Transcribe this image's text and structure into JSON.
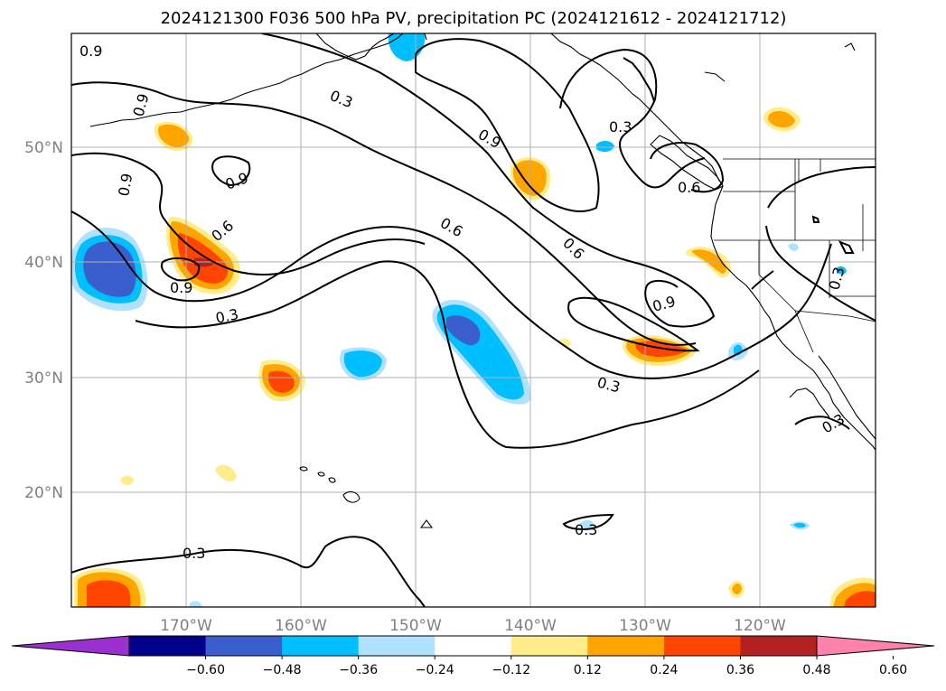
{
  "title": "2024121300 F036 500 hPa PV, precipitation PC (2024121612 - 2024121712)",
  "axes": {
    "lon_labels": [
      "170°W",
      "160°W",
      "150°W",
      "140°W",
      "130°W",
      "120°W"
    ],
    "lat_labels": [
      "50°N",
      "40°N",
      "30°N",
      "20°N"
    ]
  },
  "pv_contour_labels": [
    "0.9",
    "0.3",
    "0.9",
    "0.3",
    "0.9",
    "0.9",
    "0.6",
    "0.6",
    "0.6",
    "0.6",
    "0.9",
    "0.3",
    "0.9",
    "0.3",
    "0.3",
    "0.3",
    "0.3",
    "0.3"
  ],
  "colorbar": {
    "tick_labels": [
      "−0.60",
      "−0.48",
      "−0.36",
      "−0.24",
      "−0.12",
      "0.12",
      "0.24",
      "0.36",
      "0.48",
      "0.60"
    ],
    "colors": [
      "#9b30d0",
      "#00008b",
      "#3a5fcd",
      "#00bfff",
      "#b0e2ff",
      "#ffffff",
      "#ffec8b",
      "#ffa500",
      "#ff4500",
      "#b22222",
      "#ff82ab"
    ],
    "extend": "both"
  },
  "colors": {
    "grid": "#b0b0b0",
    "contour": "#000000",
    "tick_text": "#808080"
  }
}
